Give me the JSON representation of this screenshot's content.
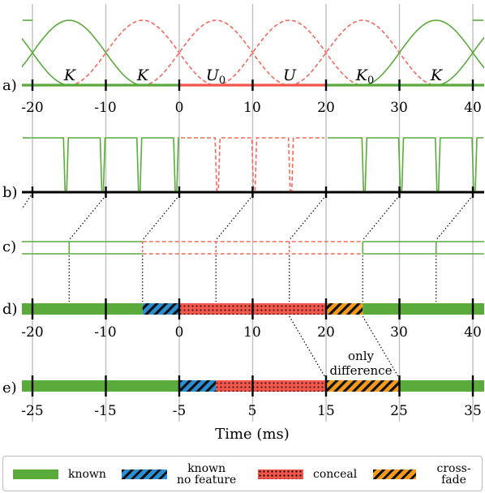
{
  "rows": {
    "a": {
      "label": "a)",
      "ticks": [
        "-20",
        "-10",
        "0",
        "10",
        "20",
        "30",
        "40"
      ],
      "segments": [
        "K",
        "K",
        "U",
        "U",
        "K",
        "K"
      ],
      "segment_subscripts": [
        "",
        "",
        "0",
        "",
        "0",
        ""
      ]
    },
    "b": {
      "label": "b)"
    },
    "c": {
      "label": "c)"
    },
    "d": {
      "label": "d)",
      "ticks": [
        "-20",
        "-10",
        "0",
        "10",
        "20",
        "30",
        "40"
      ]
    },
    "e": {
      "label": "e)",
      "ticks": [
        "-25",
        "-15",
        "-5",
        "5",
        "15",
        "25",
        "35"
      ]
    }
  },
  "annotation": {
    "line1": "only",
    "line2": "difference"
  },
  "xaxis_label": "Time (ms)",
  "legend": [
    {
      "label_line1": "known",
      "label_line2": "",
      "style": "solid"
    },
    {
      "label_line1": "known",
      "label_line2": "no feature",
      "style": "hatch-blue"
    },
    {
      "label_line1": "conceal",
      "label_line2": "",
      "style": "dots"
    },
    {
      "label_line1": "cross-fade",
      "label_line2": "",
      "style": "hatch-orange"
    }
  ],
  "colors": {
    "known": "#5aab3c",
    "conceal": "#f1574b",
    "conceal_dashed": "#f26a5e",
    "no_feature": "#2b8fd6",
    "cross_fade": "#f59a1b",
    "grid": "#bfbfbf",
    "axis": "#000000"
  }
}
